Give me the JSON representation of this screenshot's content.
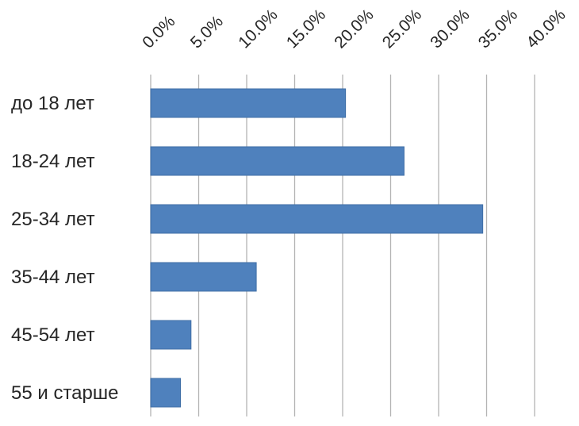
{
  "chart_data": {
    "type": "bar",
    "orientation": "horizontal",
    "categories": [
      "до 18 лет",
      "18-24 лет",
      "25-34 лет",
      "35-44 лет",
      "45-54 лет",
      "55 и старше"
    ],
    "values": [
      20.3,
      26.4,
      34.6,
      11.0,
      4.2,
      3.1
    ],
    "xlim": [
      0,
      40
    ],
    "x_ticks": [
      0,
      5,
      10,
      15,
      20,
      25,
      30,
      35,
      40
    ],
    "x_tick_labels": [
      "0.0%",
      "5.0%",
      "10.0%",
      "15.0%",
      "20.0%",
      "25.0%",
      "30.0%",
      "35.0%",
      "40.0%"
    ],
    "x_axis_position": "top",
    "x_tick_label_rotation": "diagonal",
    "grid": true,
    "legend": "none",
    "bar_color": "#4f81bd",
    "bar_border_color": "#3f6ea6",
    "grid_color": "#b3b3b3",
    "title": "",
    "xlabel": "",
    "ylabel": ""
  }
}
